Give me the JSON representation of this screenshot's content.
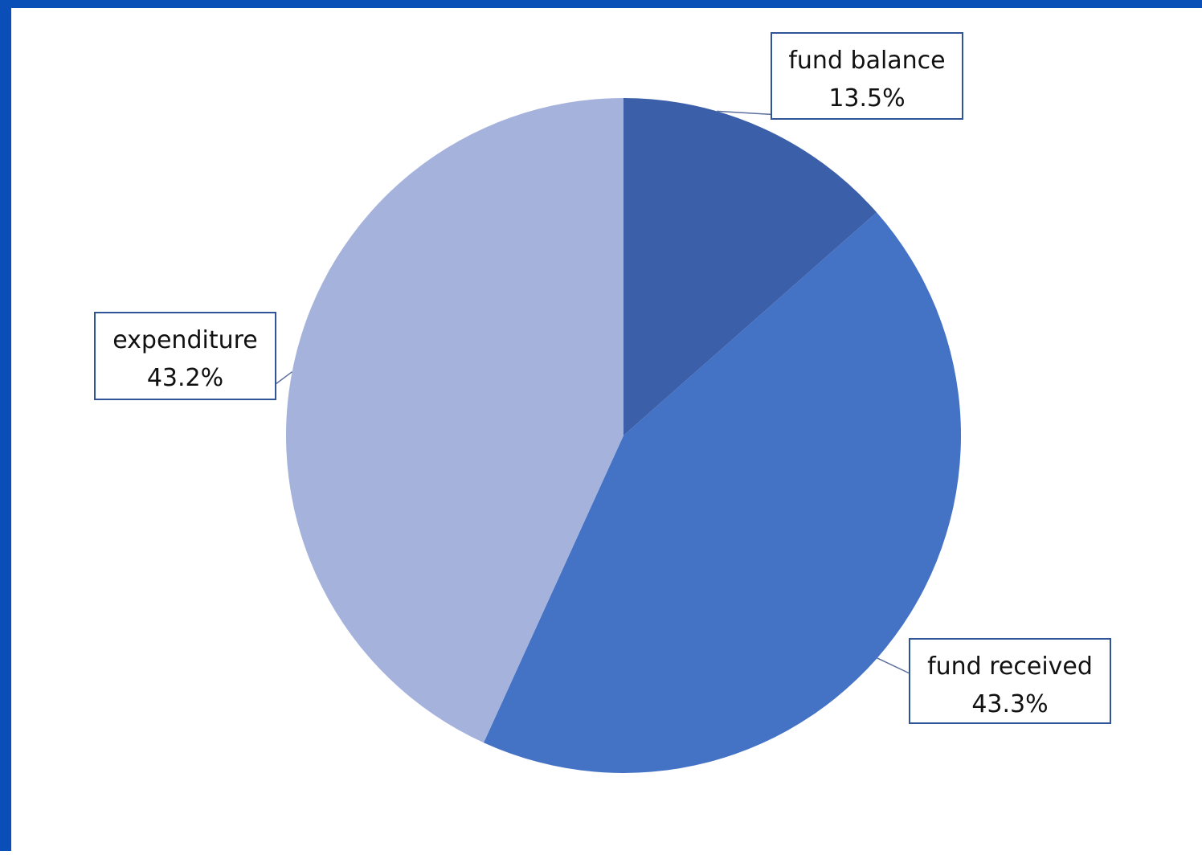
{
  "chart_data": {
    "type": "pie",
    "title": "",
    "slices": [
      {
        "name": "fund balance",
        "value": 13.5,
        "label": "13.5%",
        "color": "#3b5fa8"
      },
      {
        "name": "fund received",
        "value": 43.3,
        "label": "43.3%",
        "color": "#4472c4"
      },
      {
        "name": "expenditure",
        "value": 43.2,
        "label": "43.2%",
        "color": "#a5b3dc"
      }
    ],
    "start_angle": "12 o'clock",
    "direction": "clockwise",
    "legend": "none",
    "label_style": "callout boxes with category name and percentage"
  },
  "frame": {
    "border_color": "#0a4fb7",
    "background": "#ffffff"
  }
}
